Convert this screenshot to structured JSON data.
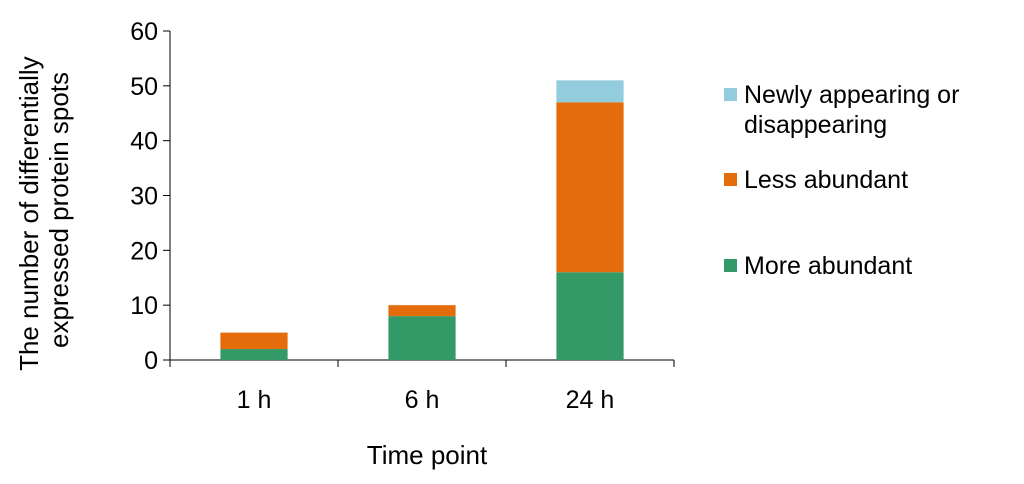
{
  "chart_data": {
    "type": "bar",
    "stacked": true,
    "categories": [
      "1 h",
      "6 h",
      "24 h"
    ],
    "series": [
      {
        "name": "More abundant",
        "values": [
          2,
          8,
          16
        ],
        "color": "#339966"
      },
      {
        "name": "Less abundant",
        "values": [
          3,
          2,
          31
        ],
        "color": "#e46c0a"
      },
      {
        "name": "Newly appearing or disappearing",
        "values": [
          0,
          0,
          4
        ],
        "color": "#93cddd"
      }
    ],
    "legend_order": [
      "Newly appearing or disappearing",
      "Less abundant",
      "More abundant"
    ],
    "legend_lines": {
      "Newly appearing or disappearing": [
        "Newly appearing or",
        "disappearing"
      ],
      "Less abundant": [
        "Less abundant"
      ],
      "More abundant": [
        "More abundant"
      ]
    },
    "xlabel": "Time point",
    "ylabel_lines": [
      "The number of differentially",
      "expressed protein spots"
    ],
    "ylim": [
      0,
      60
    ],
    "yticks": [
      0,
      10,
      20,
      30,
      40,
      50,
      60
    ],
    "grid": false,
    "legend_position": "right"
  }
}
